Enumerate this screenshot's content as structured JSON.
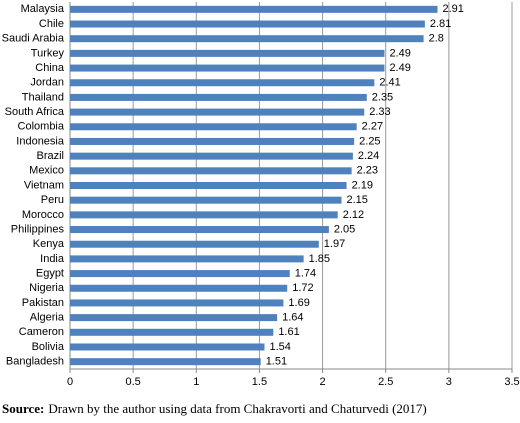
{
  "chart_data": {
    "type": "hbar",
    "categories": [
      "Malaysia",
      "Chile",
      "Saudi Arabia",
      "Turkey",
      "China",
      "Jordan",
      "Thailand",
      "South Africa",
      "Colombia",
      "Indonesia",
      "Brazil",
      "Mexico",
      "Vietnam",
      "Peru",
      "Morocco",
      "Philippines",
      "Kenya",
      "India",
      "Egypt",
      "Nigeria",
      "Pakistan",
      "Algeria",
      "Cameron",
      "Bolivia",
      "Bangladesh"
    ],
    "values": [
      2.91,
      2.81,
      2.8,
      2.49,
      2.49,
      2.41,
      2.35,
      2.33,
      2.27,
      2.25,
      2.24,
      2.23,
      2.19,
      2.15,
      2.12,
      2.05,
      1.97,
      1.85,
      1.74,
      1.72,
      1.69,
      1.64,
      1.61,
      1.54,
      1.51
    ],
    "color": "#4f81bd",
    "xlim": [
      0,
      3.5
    ],
    "xticks": [
      0,
      0.5,
      1,
      1.5,
      2,
      2.5,
      3,
      3.5
    ],
    "grid": true,
    "source_label": "Source:",
    "source": "Drawn by the author using data from Chakravorti and Chaturvedi (2017)"
  }
}
